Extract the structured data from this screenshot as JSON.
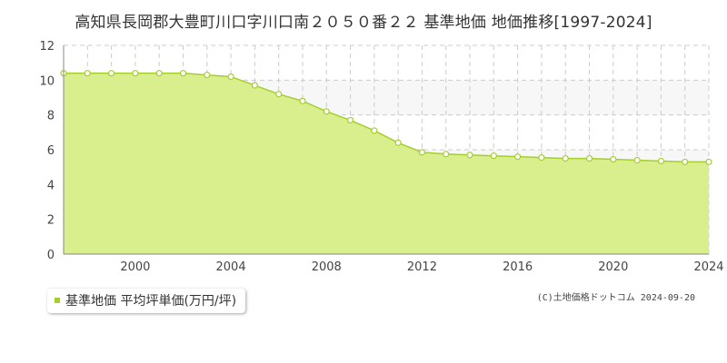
{
  "chart_data": {
    "type": "area",
    "title": "高知県長岡郡大豊町川口字川口南２０５０番２２ 基準地価 地価推移[1997-2024]",
    "xlabel": "",
    "ylabel": "",
    "x": [
      1997,
      1998,
      1999,
      2000,
      2001,
      2002,
      2003,
      2004,
      2005,
      2006,
      2007,
      2008,
      2009,
      2010,
      2011,
      2012,
      2013,
      2014,
      2015,
      2016,
      2017,
      2018,
      2019,
      2020,
      2021,
      2022,
      2023,
      2024
    ],
    "series": [
      {
        "name": "基準地価 平均坪単価(万円/坪)",
        "values": [
          10.4,
          10.4,
          10.4,
          10.4,
          10.4,
          10.4,
          10.3,
          10.2,
          9.7,
          9.2,
          8.8,
          8.2,
          7.7,
          7.1,
          6.4,
          5.85,
          5.75,
          5.7,
          5.65,
          5.6,
          5.55,
          5.5,
          5.5,
          5.45,
          5.4,
          5.35,
          5.3,
          5.3
        ]
      }
    ],
    "xlim": [
      1997,
      2024
    ],
    "ylim": [
      0,
      12
    ],
    "x_ticks": [
      "2000",
      "2004",
      "2008",
      "2012",
      "2016",
      "2020",
      "2024"
    ],
    "y_ticks": [
      "0",
      "2",
      "4",
      "6",
      "8",
      "10",
      "12"
    ],
    "grid": true,
    "colors": {
      "fill": "#d9ee8c",
      "line": "#a5cf2e",
      "marker_fill": "#ffffff",
      "grid": "#cccccc",
      "band": "#f7f7f7"
    }
  },
  "legend": {
    "label": "基準地価 平均坪単価(万円/坪)"
  },
  "copyright": "(C)土地価格ドットコム 2024-09-20"
}
